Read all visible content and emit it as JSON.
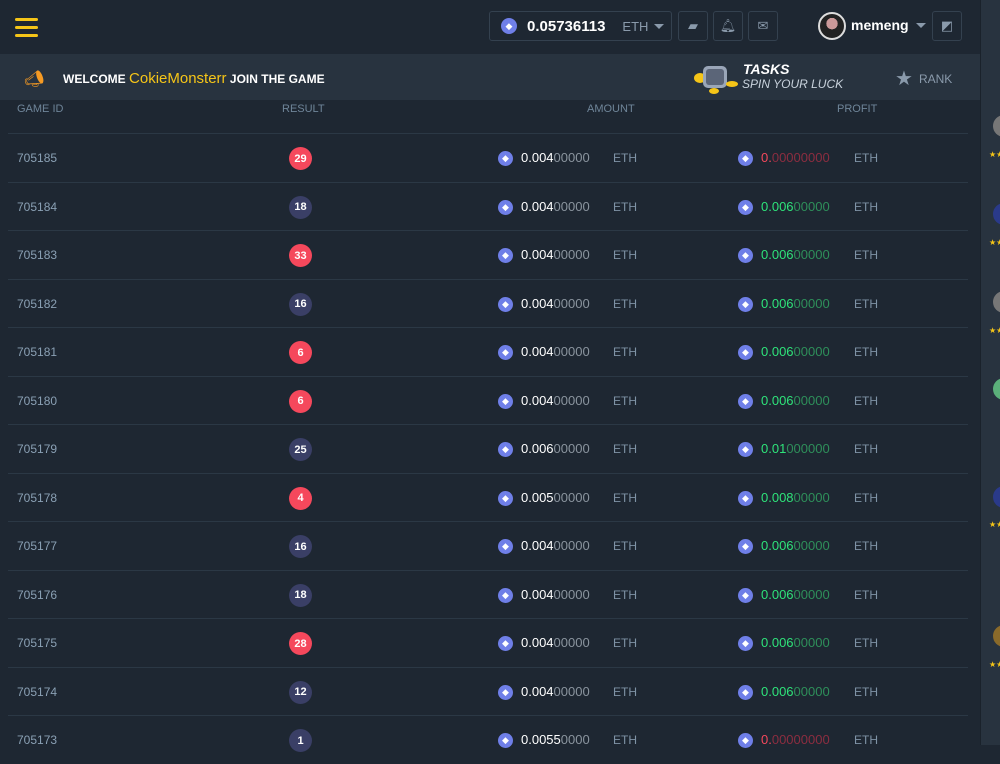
{
  "header": {
    "balance": "0.05736113",
    "currency": "ETH",
    "username": "memeng"
  },
  "banner": {
    "welcome": "WELCOME",
    "name": "CokieMonsterr",
    "join": "JOIN THE GAME",
    "tasks": "TASKS",
    "spin": "SPIN YOUR LUCK",
    "rank": "RANK"
  },
  "table": {
    "headers": {
      "game_id": "GAME ID",
      "result": "RESULT",
      "amount": "AMOUNT",
      "profit": "PROFIT"
    },
    "rows": [
      {
        "id": "705185",
        "result": "29",
        "win": false,
        "amount_b": "0.004",
        "amount_d": "00000",
        "profit_b": "0.",
        "profit_d": "00000000",
        "cur": "ETH"
      },
      {
        "id": "705184",
        "result": "18",
        "win": true,
        "amount_b": "0.004",
        "amount_d": "00000",
        "profit_b": "0.006",
        "profit_d": "00000",
        "cur": "ETH"
      },
      {
        "id": "705183",
        "result": "33",
        "win": false,
        "amount_b": "0.004",
        "amount_d": "00000",
        "profit_b": "0.006",
        "profit_d": "00000",
        "cur": "ETH"
      },
      {
        "id": "705182",
        "result": "16",
        "win": true,
        "amount_b": "0.004",
        "amount_d": "00000",
        "profit_b": "0.006",
        "profit_d": "00000",
        "cur": "ETH"
      },
      {
        "id": "705181",
        "result": "6",
        "win": false,
        "amount_b": "0.004",
        "amount_d": "00000",
        "profit_b": "0.006",
        "profit_d": "00000",
        "cur": "ETH"
      },
      {
        "id": "705180",
        "result": "6",
        "win": false,
        "amount_b": "0.004",
        "amount_d": "00000",
        "profit_b": "0.006",
        "profit_d": "00000",
        "cur": "ETH"
      },
      {
        "id": "705179",
        "result": "25",
        "win": true,
        "amount_b": "0.006",
        "amount_d": "00000",
        "profit_b": "0.01",
        "profit_d": "000000",
        "cur": "ETH"
      },
      {
        "id": "705178",
        "result": "4",
        "win": false,
        "amount_b": "0.005",
        "amount_d": "00000",
        "profit_b": "0.008",
        "profit_d": "00000",
        "cur": "ETH"
      },
      {
        "id": "705177",
        "result": "16",
        "win": true,
        "amount_b": "0.004",
        "amount_d": "00000",
        "profit_b": "0.006",
        "profit_d": "00000",
        "cur": "ETH"
      },
      {
        "id": "705176",
        "result": "18",
        "win": true,
        "amount_b": "0.004",
        "amount_d": "00000",
        "profit_b": "0.006",
        "profit_d": "00000",
        "cur": "ETH"
      },
      {
        "id": "705175",
        "result": "28",
        "win": false,
        "amount_b": "0.004",
        "amount_d": "00000",
        "profit_b": "0.006",
        "profit_d": "00000",
        "cur": "ETH"
      },
      {
        "id": "705174",
        "result": "12",
        "win": true,
        "amount_b": "0.004",
        "amount_d": "00000",
        "profit_b": "0.006",
        "profit_d": "00000",
        "cur": "ETH"
      },
      {
        "id": "705173",
        "result": "1",
        "win": true,
        "amount_b": "0.0055",
        "amount_d": "0000",
        "profit_b": "0.",
        "profit_d": "00000000",
        "cur": "ETH"
      }
    ]
  },
  "colors": {
    "red": "#f5485c",
    "navy": "#3a3f66",
    "green": "#2ee37a",
    "accent": "#f5c518"
  }
}
